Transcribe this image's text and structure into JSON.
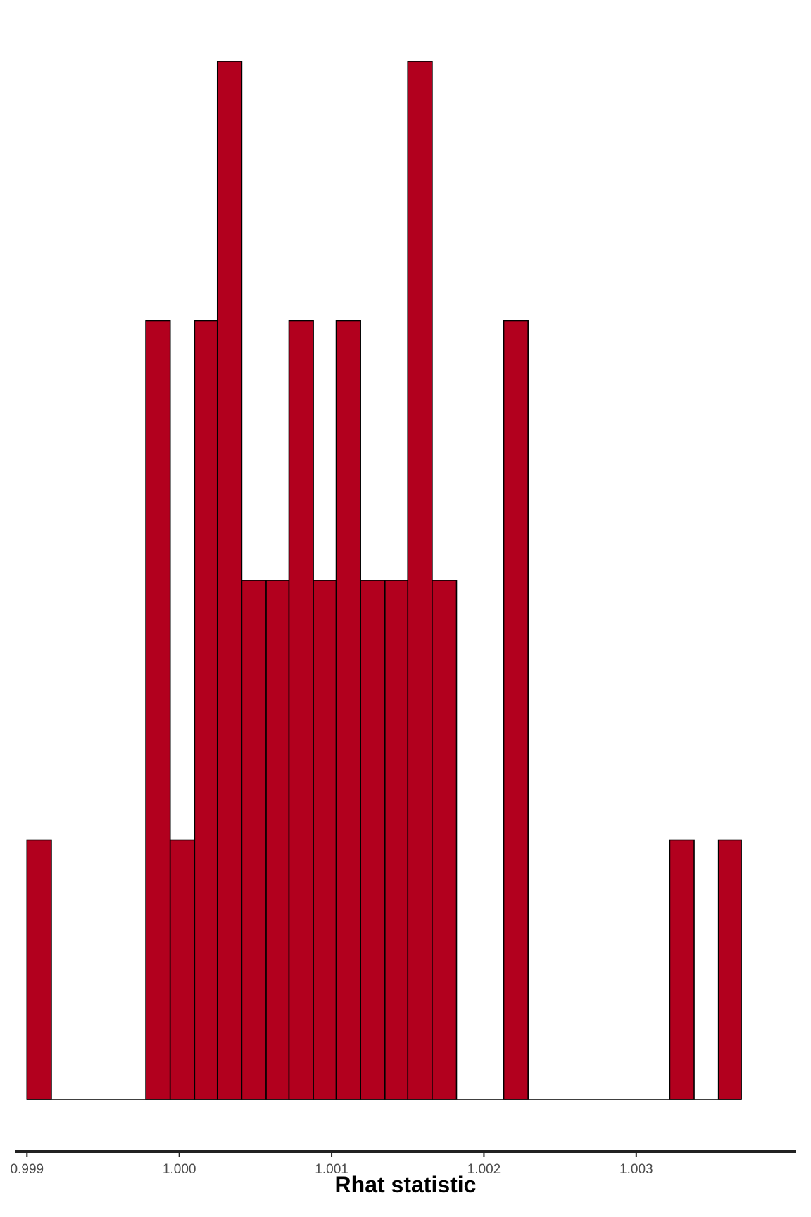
{
  "chart_data": {
    "type": "bar",
    "subtype": "histogram",
    "title": "",
    "xlabel": "Rhat statistic",
    "ylabel": "",
    "xlim": [
      0.99892,
      1.00405
    ],
    "ylim": [
      0,
      4
    ],
    "xticks": [
      0.999,
      1.0,
      1.001,
      1.002,
      1.003
    ],
    "xtick_labels": [
      "0.999",
      "1.000",
      "1.001",
      "1.002",
      "1.003"
    ],
    "y_axis_shown": false,
    "grid": false,
    "bin_width": 0.0001565,
    "bins": [
      {
        "x0": 0.999,
        "x1": 0.99916,
        "count": 1
      },
      {
        "x0": 0.99978,
        "x1": 0.99994,
        "count": 3
      },
      {
        "x0": 0.99994,
        "x1": 1.0001,
        "count": 1
      },
      {
        "x0": 1.0001,
        "x1": 1.00025,
        "count": 3
      },
      {
        "x0": 1.00025,
        "x1": 1.00041,
        "count": 4
      },
      {
        "x0": 1.00041,
        "x1": 1.00057,
        "count": 2
      },
      {
        "x0": 1.00057,
        "x1": 1.00072,
        "count": 2
      },
      {
        "x0": 1.00072,
        "x1": 1.00088,
        "count": 3
      },
      {
        "x0": 1.00088,
        "x1": 1.00103,
        "count": 2
      },
      {
        "x0": 1.00103,
        "x1": 1.00119,
        "count": 3
      },
      {
        "x0": 1.00119,
        "x1": 1.00135,
        "count": 2
      },
      {
        "x0": 1.00135,
        "x1": 1.0015,
        "count": 2
      },
      {
        "x0": 1.0015,
        "x1": 1.00166,
        "count": 4
      },
      {
        "x0": 1.00166,
        "x1": 1.00182,
        "count": 2
      },
      {
        "x0": 1.00213,
        "x1": 1.00229,
        "count": 3
      },
      {
        "x0": 1.00322,
        "x1": 1.00338,
        "count": 1
      },
      {
        "x0": 1.00354,
        "x1": 1.00369,
        "count": 1
      }
    ],
    "colors": {
      "bar_fill": "#b2001e",
      "bar_stroke": "#000000",
      "axis_line": "#222222",
      "tick_text": "#4d4d4d"
    }
  }
}
